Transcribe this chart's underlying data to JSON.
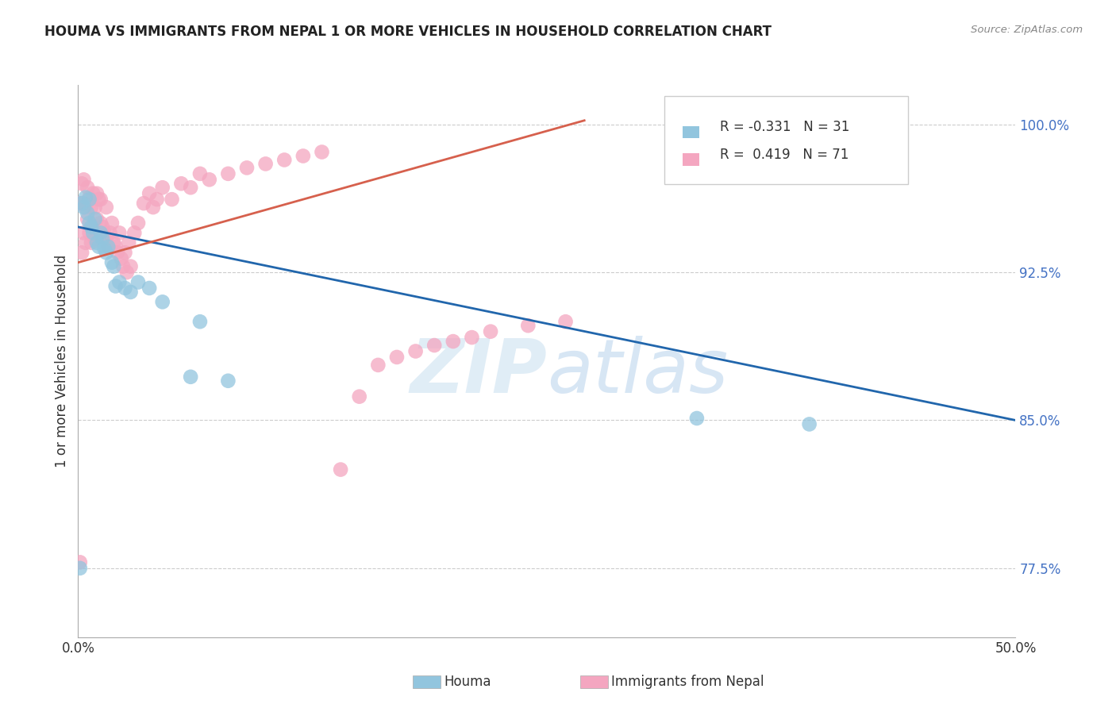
{
  "title": "HOUMA VS IMMIGRANTS FROM NEPAL 1 OR MORE VEHICLES IN HOUSEHOLD CORRELATION CHART",
  "source": "Source: ZipAtlas.com",
  "ylabel": "1 or more Vehicles in Household",
  "xlabel_houma": "Houma",
  "xlabel_nepal": "Immigrants from Nepal",
  "watermark": "ZIPatlas",
  "legend_houma_r": "-0.331",
  "legend_houma_n": "31",
  "legend_nepal_r": "0.419",
  "legend_nepal_n": "71",
  "x_min": 0.0,
  "x_max": 0.5,
  "y_min": 0.74,
  "y_max": 1.02,
  "color_houma": "#92c5de",
  "color_nepal": "#f4a6c0",
  "line_color_houma": "#2166ac",
  "line_color_nepal": "#d6604d",
  "houma_scatter_x": [
    0.001,
    0.002,
    0.003,
    0.004,
    0.005,
    0.006,
    0.006,
    0.007,
    0.008,
    0.009,
    0.01,
    0.011,
    0.012,
    0.013,
    0.014,
    0.015,
    0.016,
    0.018,
    0.019,
    0.02,
    0.022,
    0.025,
    0.028,
    0.032,
    0.038,
    0.045,
    0.06,
    0.065,
    0.08,
    0.33,
    0.39
  ],
  "houma_scatter_y": [
    0.775,
    0.96,
    0.958,
    0.963,
    0.955,
    0.95,
    0.962,
    0.948,
    0.945,
    0.952,
    0.94,
    0.938,
    0.945,
    0.942,
    0.937,
    0.935,
    0.938,
    0.93,
    0.928,
    0.918,
    0.92,
    0.917,
    0.915,
    0.92,
    0.917,
    0.91,
    0.872,
    0.9,
    0.87,
    0.851,
    0.848
  ],
  "nepal_scatter_x": [
    0.001,
    0.001,
    0.002,
    0.002,
    0.003,
    0.003,
    0.003,
    0.004,
    0.004,
    0.005,
    0.005,
    0.006,
    0.006,
    0.007,
    0.007,
    0.008,
    0.008,
    0.009,
    0.009,
    0.01,
    0.01,
    0.011,
    0.011,
    0.012,
    0.012,
    0.013,
    0.014,
    0.015,
    0.015,
    0.016,
    0.017,
    0.018,
    0.019,
    0.02,
    0.021,
    0.022,
    0.023,
    0.024,
    0.025,
    0.026,
    0.027,
    0.028,
    0.03,
    0.032,
    0.035,
    0.038,
    0.04,
    0.042,
    0.045,
    0.05,
    0.055,
    0.06,
    0.065,
    0.07,
    0.08,
    0.09,
    0.1,
    0.11,
    0.12,
    0.13,
    0.14,
    0.15,
    0.16,
    0.17,
    0.18,
    0.19,
    0.2,
    0.21,
    0.22,
    0.24,
    0.26
  ],
  "nepal_scatter_y": [
    0.778,
    0.96,
    0.935,
    0.97,
    0.945,
    0.96,
    0.972,
    0.94,
    0.958,
    0.952,
    0.968,
    0.945,
    0.963,
    0.94,
    0.958,
    0.948,
    0.965,
    0.942,
    0.958,
    0.952,
    0.965,
    0.945,
    0.962,
    0.95,
    0.962,
    0.948,
    0.945,
    0.942,
    0.958,
    0.938,
    0.945,
    0.95,
    0.94,
    0.938,
    0.935,
    0.945,
    0.932,
    0.928,
    0.935,
    0.925,
    0.94,
    0.928,
    0.945,
    0.95,
    0.96,
    0.965,
    0.958,
    0.962,
    0.968,
    0.962,
    0.97,
    0.968,
    0.975,
    0.972,
    0.975,
    0.978,
    0.98,
    0.982,
    0.984,
    0.986,
    0.825,
    0.862,
    0.878,
    0.882,
    0.885,
    0.888,
    0.89,
    0.892,
    0.895,
    0.898,
    0.9
  ],
  "houma_line_x0": 0.0,
  "houma_line_y0": 0.948,
  "houma_line_x1": 0.5,
  "houma_line_y1": 0.85,
  "nepal_line_x0": 0.0,
  "nepal_line_y0": 0.93,
  "nepal_line_x1": 0.27,
  "nepal_line_y1": 1.002,
  "ytick_vals": [
    0.775,
    0.85,
    0.925,
    1.0
  ],
  "ytick_labels": [
    "77.5%",
    "85.0%",
    "92.5%",
    "100.0%"
  ],
  "xtick_vals": [
    0.0,
    0.05,
    0.1,
    0.15,
    0.2,
    0.25,
    0.3,
    0.35,
    0.4,
    0.45,
    0.5
  ],
  "xtick_show": [
    "0.0%",
    "",
    "",
    "",
    "",
    "",
    "",
    "",
    "",
    "",
    "50.0%"
  ]
}
